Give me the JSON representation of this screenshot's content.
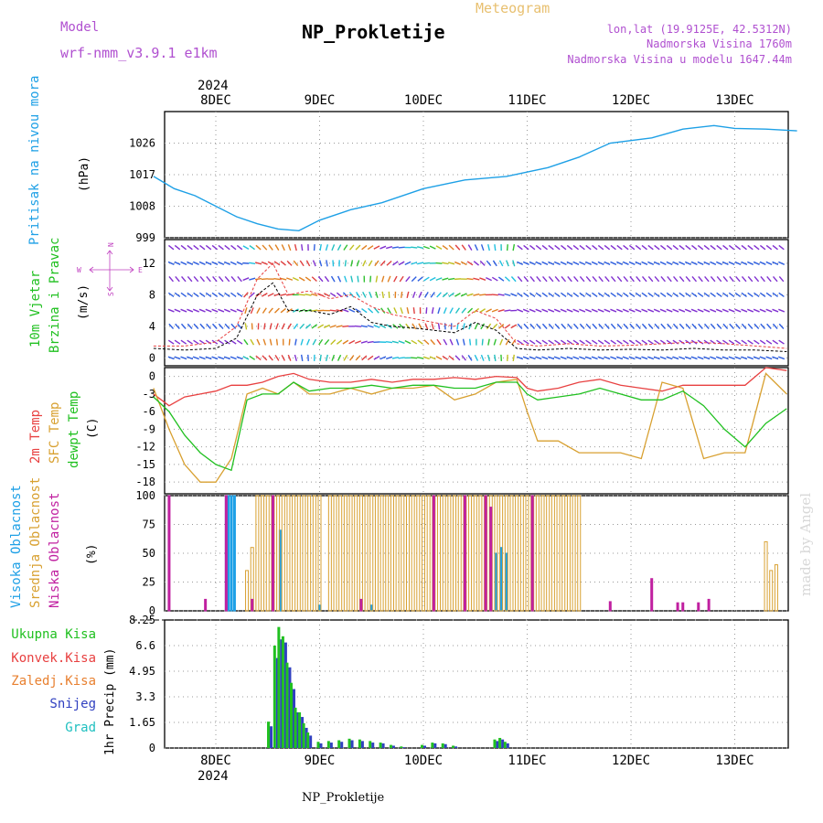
{
  "header": {
    "model_label": "Model",
    "model_name": "wrf-nmm_v3.9.1 e1km",
    "title": "NP_Prokletije",
    "meteogram_label": "Meteogram",
    "lonlat": "lon,lat (19.9125E, 42.5312N)",
    "altitude": "Nadmorska Visina 1760m",
    "model_altitude": "Nadmorska Visina u modelu 1647.44m"
  },
  "footer": {
    "station": "NP_Prokletije",
    "watermark": "made by Angel"
  },
  "time_axis": {
    "year": "2024",
    "days": [
      "8DEC",
      "9DEC",
      "10DEC",
      "11DEC",
      "12DEC",
      "13DEC"
    ]
  },
  "colors": {
    "pressure": "#1ea0e6",
    "wind_mean": "#000000",
    "wind_gust": "#e84040",
    "temp2m": "#e84040",
    "sfc_temp": "#d8a030",
    "dewpt": "#20c020",
    "high_cloud": "#1ea0e6",
    "mid_cloud": "#d8a030",
    "low_cloud": "#c020a0",
    "total_precip": "#20c020",
    "snow": "#3040c0",
    "grad": "#20c0c0"
  },
  "panels": {
    "pressure": {
      "label_main": "Pritisak na nivou mora",
      "unit": "(hPa)"
    },
    "wind": {
      "label_1": "10m Vjetar",
      "label_2": "Brzina i Pravac",
      "unit": "(m/s)",
      "compass": {
        "n": "N",
        "w": "W",
        "e": "E",
        "s": "S"
      }
    },
    "temp": {
      "label_1": "2m Temp",
      "label_2": "SFC Temp",
      "label_3": "dewpt Temp",
      "unit": "(C)"
    },
    "cloud": {
      "label_1": "Visoka Oblacnost",
      "label_2": "Srednja Oblacnost",
      "label_3": "Niska Oblacnost",
      "unit": "(%)"
    },
    "precip": {
      "legend": [
        "Ukupna Kisa",
        "Konvek.Kisa",
        "Zaledj.Kisa",
        "Snijeg",
        "Grad"
      ],
      "unit": "1hr Precip (mm)"
    }
  },
  "chart_data": [
    {
      "type": "line",
      "name": "pressure",
      "yticks": [
        "999",
        "1008",
        "1017",
        "1026"
      ],
      "ylim": [
        999,
        1035
      ],
      "x": [
        -0.6,
        -0.4,
        -0.2,
        0.0,
        0.2,
        0.4,
        0.6,
        0.8,
        1.0,
        1.3,
        1.6,
        2.0,
        2.4,
        2.8,
        3.2,
        3.5,
        3.8,
        4.2,
        4.5,
        4.8,
        5.0,
        5.3,
        5.6
      ],
      "values": [
        1016.5,
        1013,
        1011,
        1008,
        1005,
        1003,
        1001.5,
        1001,
        1004,
        1007,
        1009,
        1013,
        1015.5,
        1016.5,
        1019,
        1022,
        1026,
        1027.5,
        1030,
        1031,
        1030.2,
        1030,
        1029.5
      ]
    },
    {
      "type": "line",
      "name": "wind",
      "yticks": [
        "0",
        "4",
        "8",
        "12"
      ],
      "ylim": [
        -1,
        15
      ],
      "x": [
        -0.6,
        -0.3,
        0.0,
        0.2,
        0.4,
        0.55,
        0.7,
        0.9,
        1.1,
        1.3,
        1.5,
        1.7,
        1.9,
        2.1,
        2.3,
        2.5,
        2.7,
        2.9,
        3.1,
        3.4,
        3.7,
        4.0,
        4.3,
        4.6,
        4.9,
        5.2,
        5.5
      ],
      "series": [
        {
          "name": "mean",
          "values": [
            1.2,
            1.0,
            1.2,
            2.5,
            8.0,
            9.5,
            6.0,
            6.0,
            5.5,
            6.5,
            4.5,
            4.0,
            3.8,
            3.5,
            3.2,
            4.5,
            3.5,
            1.2,
            1.0,
            1.2,
            1.0,
            1.1,
            1.0,
            1.2,
            1.0,
            1.0,
            0.8
          ]
        },
        {
          "name": "gust",
          "values": [
            1.5,
            1.5,
            2.0,
            4.0,
            10.0,
            12.0,
            8.0,
            8.5,
            7.5,
            8.0,
            6.5,
            5.5,
            5.0,
            4.5,
            4.0,
            6.0,
            5.0,
            1.8,
            1.5,
            1.8,
            1.5,
            1.6,
            1.8,
            2.0,
            1.8,
            1.5,
            1.2
          ]
        }
      ]
    },
    {
      "type": "line",
      "name": "temperature",
      "yticks": [
        "0",
        "-3",
        "-6",
        "-9",
        "-12",
        "-15",
        "-18"
      ],
      "ylim": [
        -20,
        1.5
      ],
      "x": [
        -0.6,
        -0.45,
        -0.3,
        -0.15,
        0.0,
        0.15,
        0.3,
        0.45,
        0.6,
        0.75,
        0.9,
        1.1,
        1.3,
        1.5,
        1.7,
        1.9,
        2.1,
        2.3,
        2.5,
        2.7,
        2.9,
        3.0,
        3.1,
        3.3,
        3.5,
        3.7,
        3.9,
        4.1,
        4.3,
        4.5,
        4.7,
        4.9,
        5.1,
        5.3,
        5.5
      ],
      "series": [
        {
          "name": "2m Temp",
          "values": [
            -3,
            -5,
            -3.5,
            -3,
            -2.5,
            -1.5,
            -1.5,
            -1,
            0,
            0.5,
            -0.5,
            -1,
            -1,
            -0.5,
            -1,
            -0.5,
            -0.5,
            -0.2,
            -0.5,
            0,
            -0.2,
            -2,
            -2.5,
            -2,
            -1,
            -0.5,
            -1.5,
            -2,
            -2.5,
            -1.5,
            -1.5,
            -1.5,
            -1.5,
            1.5,
            1.0
          ]
        },
        {
          "name": "SFC Temp",
          "values": [
            -2,
            -9,
            -15,
            -18,
            -18,
            -14,
            -3,
            -2,
            -3,
            -1,
            -3,
            -3,
            -2,
            -3,
            -2,
            -2,
            -1.5,
            -4,
            -3,
            -1,
            -0.5,
            -6,
            -11,
            -11,
            -13,
            -13,
            -13,
            -14,
            -1,
            -2,
            -14,
            -13,
            -13,
            0.5,
            -3
          ]
        },
        {
          "name": "dewpt Temp",
          "values": [
            -3.5,
            -6,
            -10,
            -13,
            -15,
            -16,
            -4,
            -3,
            -3,
            -1,
            -2.5,
            -2,
            -2,
            -1.5,
            -2,
            -1.5,
            -1.5,
            -2,
            -2,
            -1,
            -1,
            -3,
            -4,
            -3.5,
            -3,
            -2,
            -3,
            -4,
            -4,
            -2.5,
            -5,
            -9,
            -12,
            -8,
            -5.5
          ]
        }
      ]
    },
    {
      "type": "bar",
      "name": "cloud_cover",
      "yticks": [
        "0",
        "25",
        "50",
        "75",
        "100"
      ],
      "ylim": [
        0,
        100
      ],
      "series": [
        {
          "name": "Visoka Oblacnost",
          "x": [
            0.1,
            0.12,
            0.15,
            0.18,
            0.62,
            1.0,
            1.5,
            2.7,
            2.75,
            2.8
          ],
          "values": [
            100,
            100,
            100,
            100,
            70,
            5,
            5,
            50,
            55,
            50
          ]
        },
        {
          "name": "Srednja Oblacnost",
          "x": [
            0.3,
            0.35,
            0.4,
            0.45,
            0.5,
            0.55,
            0.6,
            0.65,
            0.7,
            0.75,
            0.8,
            0.85,
            0.9,
            0.95,
            1.0,
            1.1,
            1.15,
            1.2,
            1.25,
            1.3,
            1.35,
            1.4,
            1.45,
            1.5,
            1.55,
            1.6,
            1.65,
            1.7,
            1.75,
            1.8,
            1.85,
            1.9,
            1.95,
            2.0,
            2.05,
            2.1,
            2.15,
            2.2,
            2.25,
            2.3,
            2.35,
            2.4,
            2.45,
            2.5,
            2.55,
            2.6,
            2.65,
            2.7,
            2.75,
            2.8,
            2.85,
            2.9,
            2.95,
            3.0,
            3.05,
            3.1,
            3.15,
            3.2,
            3.25,
            3.3,
            3.35,
            3.4,
            3.45,
            3.5,
            5.3,
            5.35,
            5.4
          ],
          "values": [
            35,
            55,
            100,
            100,
            100,
            100,
            100,
            100,
            100,
            100,
            100,
            100,
            100,
            100,
            100,
            100,
            100,
            100,
            100,
            100,
            100,
            100,
            100,
            100,
            100,
            100,
            100,
            100,
            100,
            100,
            100,
            100,
            100,
            100,
            100,
            100,
            100,
            100,
            100,
            100,
            100,
            100,
            100,
            100,
            100,
            100,
            100,
            100,
            100,
            100,
            100,
            100,
            100,
            100,
            100,
            100,
            100,
            100,
            100,
            100,
            100,
            100,
            100,
            100,
            60,
            35,
            40
          ]
        },
        {
          "name": "Niska Oblacnost",
          "x": [
            -0.45,
            -0.1,
            0.1,
            0.35,
            0.55,
            1.4,
            2.1,
            2.4,
            2.6,
            2.65,
            3.05,
            3.8,
            4.2,
            4.45,
            4.5,
            4.65,
            4.75
          ],
          "values": [
            100,
            10,
            100,
            10,
            100,
            10,
            100,
            100,
            100,
            90,
            100,
            8,
            28,
            7,
            7,
            7,
            10
          ]
        }
      ]
    },
    {
      "type": "bar",
      "name": "precipitation",
      "yticks": [
        "0",
        "1.65",
        "3.3",
        "4.95",
        "6.6",
        "8.25"
      ],
      "ylim": [
        0,
        8.25
      ],
      "x": [
        0.52,
        0.58,
        0.62,
        0.66,
        0.7,
        0.74,
        0.78,
        0.82,
        0.86,
        0.9,
        1.0,
        1.1,
        1.2,
        1.3,
        1.4,
        1.5,
        1.6,
        1.7,
        1.8,
        2.0,
        2.1,
        2.2,
        2.3,
        2.7,
        2.75,
        2.8
      ],
      "series": [
        {
          "name": "Ukupna Kisa",
          "values": [
            1.7,
            6.6,
            7.8,
            7.2,
            5.5,
            4.2,
            2.6,
            2.3,
            1.6,
            1.0,
            0.4,
            0.45,
            0.5,
            0.6,
            0.55,
            0.45,
            0.35,
            0.2,
            0.1,
            0.2,
            0.35,
            0.3,
            0.15,
            0.55,
            0.65,
            0.4
          ]
        },
        {
          "name": "Snijeg",
          "values": [
            1.4,
            5.8,
            7.0,
            6.8,
            5.2,
            3.8,
            2.3,
            2.0,
            1.3,
            0.8,
            0.3,
            0.35,
            0.4,
            0.5,
            0.45,
            0.35,
            0.3,
            0.15,
            0.05,
            0.15,
            0.3,
            0.25,
            0.1,
            0.45,
            0.55,
            0.3
          ]
        }
      ]
    }
  ]
}
